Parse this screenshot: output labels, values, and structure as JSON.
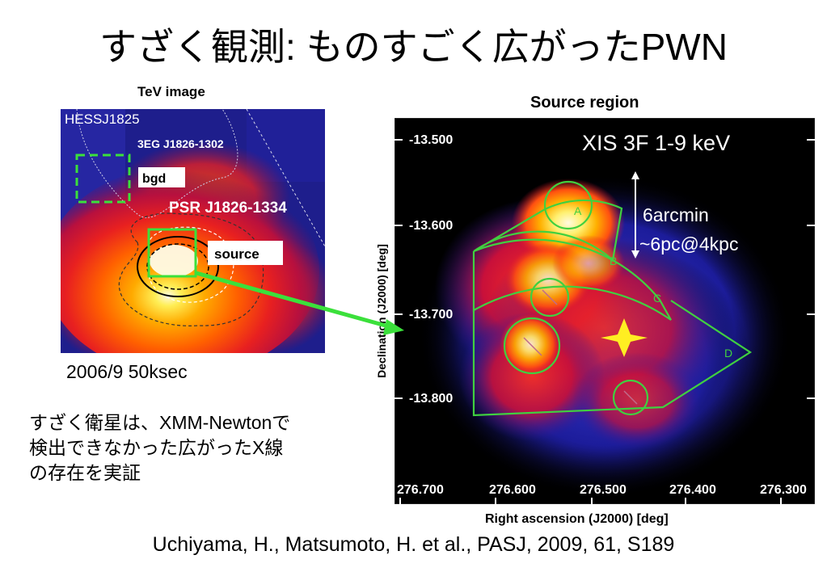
{
  "slide": {
    "title": "すざく観測: ものすごく広がったPWN",
    "reference": "Uchiyama, H., Matsumoto, H. et al., PASJ, 2009, 61, S189",
    "note_lines": [
      "すざく衛星は、XMM-Newtonで",
      "検出できなかった広がったX線",
      "の存在を実証"
    ]
  },
  "tev_panel": {
    "caption": "TeV image",
    "source_name": "HESSJ1825",
    "egret_label": "3EG J1826-1302",
    "pulsar_label": "PSR J1826-1334",
    "bgd_label": "bgd",
    "source_label": "source",
    "observation": "2006/9 50ksec"
  },
  "xray_panel": {
    "title": "Source region",
    "band_label": "XIS 3F 1-9 keV",
    "scale_line1": "6arcmin",
    "scale_line2": "~6pc@4kpc",
    "dec_axis_label": "Declination (J2000) [deg]",
    "ra_axis_label": "Right ascension (J2000) [deg]",
    "dec_ticks": [
      "-13.500",
      "-13.600",
      "-13.700",
      "-13.800"
    ],
    "ra_ticks": [
      "276.700",
      "276.600",
      "276.500",
      "276.400",
      "276.300"
    ],
    "regions": [
      "A",
      "B",
      "C",
      "D"
    ]
  },
  "colors": {
    "region_green": "#40d040",
    "box_green": "#3be03b",
    "star_yellow": "#ffee22",
    "map_background": "#000000"
  }
}
